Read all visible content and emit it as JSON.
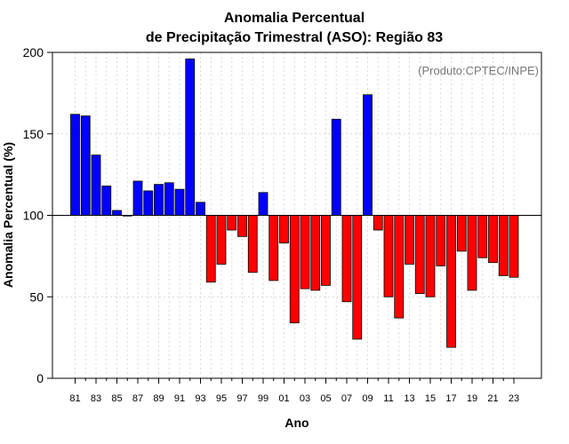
{
  "chart_data": {
    "type": "bar",
    "title_line1": "Anomalia Percentual",
    "title_line2": "de Precipitação Trimestral (ASO): Região 83",
    "xlabel": "Ano",
    "ylabel": "Anomalia Percentual (%)",
    "source": "(Produto:CPTEC/INPE)",
    "baseline": 100,
    "ylim": [
      0,
      200
    ],
    "yticks": [
      0,
      50,
      100,
      150,
      200
    ],
    "x_tick_labels": [
      "81",
      "83",
      "85",
      "87",
      "89",
      "91",
      "93",
      "95",
      "97",
      "99",
      "01",
      "03",
      "05",
      "07",
      "09",
      "11",
      "13",
      "15",
      "17",
      "19",
      "21",
      "23"
    ],
    "categories": [
      "1981",
      "1982",
      "1983",
      "1984",
      "1985",
      "1986",
      "1987",
      "1988",
      "1989",
      "1990",
      "1991",
      "1992",
      "1993",
      "1994",
      "1995",
      "1996",
      "1997",
      "1998",
      "1999",
      "2000",
      "2001",
      "2002",
      "2003",
      "2004",
      "2005",
      "2006",
      "2007",
      "2008",
      "2009",
      "2010",
      "2011",
      "2012",
      "2013",
      "2014",
      "2015",
      "2016",
      "2017",
      "2018",
      "2019",
      "2020",
      "2021",
      "2022",
      "2023"
    ],
    "values": [
      162,
      161,
      137,
      118,
      103,
      100,
      121,
      115,
      119,
      120,
      116,
      196,
      108,
      59,
      70,
      91,
      87,
      65,
      114,
      60,
      83,
      34,
      55,
      54,
      57,
      159,
      47,
      24,
      174,
      91,
      50,
      37,
      70,
      52,
      50,
      69,
      19,
      78,
      54,
      74,
      71,
      63,
      62
    ],
    "colors": {
      "above": "#0000ff",
      "below": "#ff0000"
    }
  }
}
